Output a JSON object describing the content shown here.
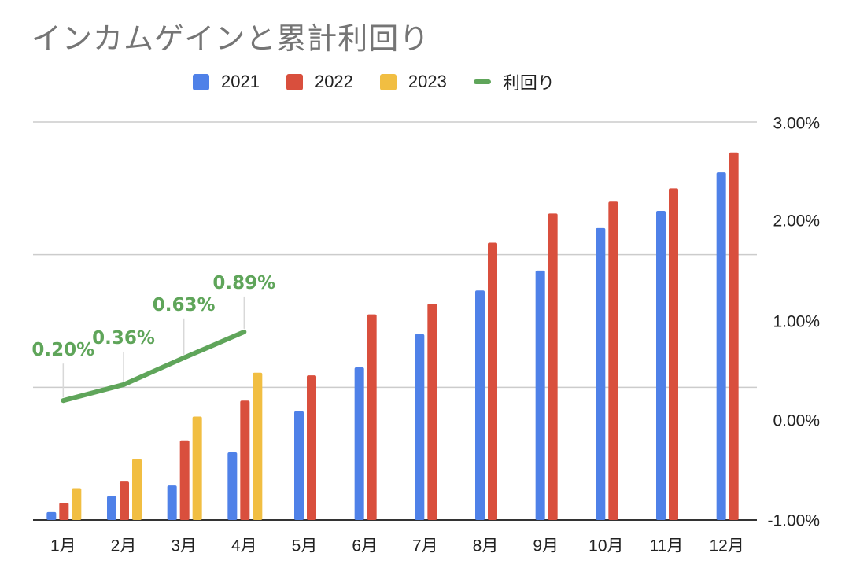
{
  "chart_data": {
    "type": "bar",
    "title": "インカムゲインと累計利回り",
    "categories": [
      "1月",
      "2月",
      "3月",
      "4月",
      "5月",
      "6月",
      "7月",
      "8月",
      "9月",
      "10月",
      "11月",
      "12月"
    ],
    "series": [
      {
        "name": "2021",
        "type": "bar",
        "color": "#4f81e8",
        "axis": "left",
        "values": [
          6000,
          18000,
          26000,
          51000,
          82000,
          115000,
          140000,
          173000,
          188000,
          220000,
          233000,
          262000
        ]
      },
      {
        "name": "2022",
        "type": "bar",
        "color": "#d94f3d",
        "axis": "left",
        "values": [
          13000,
          29000,
          60000,
          90000,
          109000,
          155000,
          163000,
          209000,
          231000,
          240000,
          250000,
          277000
        ]
      },
      {
        "name": "2023",
        "type": "bar",
        "color": "#f1be42",
        "axis": "left",
        "values": [
          24000,
          46000,
          78000,
          111000,
          null,
          null,
          null,
          null,
          null,
          null,
          null,
          null
        ]
      },
      {
        "name": "利回り",
        "type": "line",
        "color": "#5fa55a",
        "axis": "right",
        "values": [
          0.2,
          0.36,
          0.63,
          0.89,
          null,
          null,
          null,
          null,
          null,
          null,
          null,
          null
        ],
        "data_labels": [
          "0.20%",
          "0.36%",
          "0.63%",
          "0.89%"
        ]
      }
    ],
    "right_axis": {
      "ticks": [
        "3.00%",
        "2.00%",
        "1.00%",
        "0.00%",
        "-1.00%"
      ],
      "range": [
        -1.0,
        3.0
      ]
    },
    "left_axis": {
      "range": [
        0,
        300000
      ],
      "tick_labels_visible": false
    },
    "grid": true,
    "legend_position": "top"
  }
}
